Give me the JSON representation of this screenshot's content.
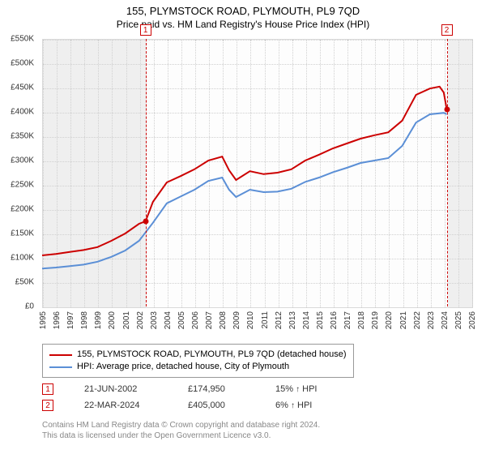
{
  "title1": "155, PLYMSTOCK ROAD, PLYMOUTH, PL9 7QD",
  "title2": "Price paid vs. HM Land Registry's House Price Index (HPI)",
  "chart": {
    "type": "line",
    "background_color": "#fdfdfd",
    "shade_color": "#efefef",
    "grid_color": "#d0d0d0",
    "border_color": "#d9d9d9",
    "ylim": [
      0,
      550000
    ],
    "ytick_step": 50000,
    "yticks": [
      "£0",
      "£50K",
      "£100K",
      "£150K",
      "£200K",
      "£250K",
      "£300K",
      "£350K",
      "£400K",
      "£450K",
      "£500K",
      "£550K"
    ],
    "xlim": [
      1995,
      2026
    ],
    "xticks": [
      1995,
      1996,
      1997,
      1998,
      1999,
      2000,
      2001,
      2002,
      2003,
      2004,
      2005,
      2006,
      2007,
      2008,
      2009,
      2010,
      2011,
      2012,
      2013,
      2014,
      2015,
      2016,
      2017,
      2018,
      2019,
      2020,
      2021,
      2022,
      2023,
      2024,
      2025,
      2026
    ],
    "shade_ranges": [
      [
        1995,
        2002.47
      ],
      [
        2024.22,
        2026
      ]
    ],
    "series": [
      {
        "name": "price_paid",
        "color": "#cc0000",
        "width": 2,
        "xy": [
          [
            1995,
            105
          ],
          [
            1996,
            108
          ],
          [
            1997,
            112
          ],
          [
            1998,
            116
          ],
          [
            1999,
            122
          ],
          [
            2000,
            135
          ],
          [
            2001,
            150
          ],
          [
            2002,
            170
          ],
          [
            2002.47,
            175
          ],
          [
            2003,
            215
          ],
          [
            2004,
            255
          ],
          [
            2005,
            268
          ],
          [
            2006,
            282
          ],
          [
            2007,
            300
          ],
          [
            2008,
            308
          ],
          [
            2008.5,
            280
          ],
          [
            2009,
            260
          ],
          [
            2010,
            278
          ],
          [
            2011,
            272
          ],
          [
            2012,
            275
          ],
          [
            2013,
            282
          ],
          [
            2014,
            300
          ],
          [
            2015,
            312
          ],
          [
            2016,
            325
          ],
          [
            2017,
            335
          ],
          [
            2018,
            345
          ],
          [
            2019,
            352
          ],
          [
            2020,
            358
          ],
          [
            2021,
            382
          ],
          [
            2022,
            435
          ],
          [
            2023,
            448
          ],
          [
            2023.7,
            452
          ],
          [
            2024.0,
            440
          ],
          [
            2024.22,
            405
          ]
        ]
      },
      {
        "name": "hpi",
        "color": "#5b8fd6",
        "width": 2,
        "xy": [
          [
            1995,
            78
          ],
          [
            1996,
            80
          ],
          [
            1997,
            83
          ],
          [
            1998,
            86
          ],
          [
            1999,
            92
          ],
          [
            2000,
            102
          ],
          [
            2001,
            115
          ],
          [
            2002,
            135
          ],
          [
            2003,
            172
          ],
          [
            2004,
            212
          ],
          [
            2005,
            226
          ],
          [
            2006,
            240
          ],
          [
            2007,
            258
          ],
          [
            2008,
            265
          ],
          [
            2008.5,
            240
          ],
          [
            2009,
            225
          ],
          [
            2010,
            240
          ],
          [
            2011,
            235
          ],
          [
            2012,
            236
          ],
          [
            2013,
            242
          ],
          [
            2014,
            256
          ],
          [
            2015,
            265
          ],
          [
            2016,
            276
          ],
          [
            2017,
            285
          ],
          [
            2018,
            295
          ],
          [
            2019,
            300
          ],
          [
            2020,
            305
          ],
          [
            2021,
            330
          ],
          [
            2022,
            378
          ],
          [
            2023,
            395
          ],
          [
            2024,
            398
          ],
          [
            2024.22,
            395
          ]
        ]
      }
    ],
    "markers": [
      {
        "num": "1",
        "x": 2002.47,
        "y": 174.95,
        "color": "#cc0000",
        "above": true
      },
      {
        "num": "2",
        "x": 2024.22,
        "y": 405.0,
        "color": "#cc0000",
        "above": true
      }
    ]
  },
  "legend": {
    "items": [
      {
        "color": "#cc0000",
        "label": "155, PLYMSTOCK ROAD, PLYMOUTH, PL9 7QD (detached house)"
      },
      {
        "color": "#5b8fd6",
        "label": "HPI: Average price, detached house, City of Plymouth"
      }
    ]
  },
  "events": [
    {
      "num": "1",
      "color": "#cc0000",
      "date": "21-JUN-2002",
      "price": "£174,950",
      "pct": "15%",
      "arrow": "↑",
      "vs": "HPI"
    },
    {
      "num": "2",
      "color": "#cc0000",
      "date": "22-MAR-2024",
      "price": "£405,000",
      "pct": "6%",
      "arrow": "↑",
      "vs": "HPI"
    }
  ],
  "footer": {
    "line1": "Contains HM Land Registry data © Crown copyright and database right 2024.",
    "line2": "This data is licensed under the Open Government Licence v3.0."
  }
}
